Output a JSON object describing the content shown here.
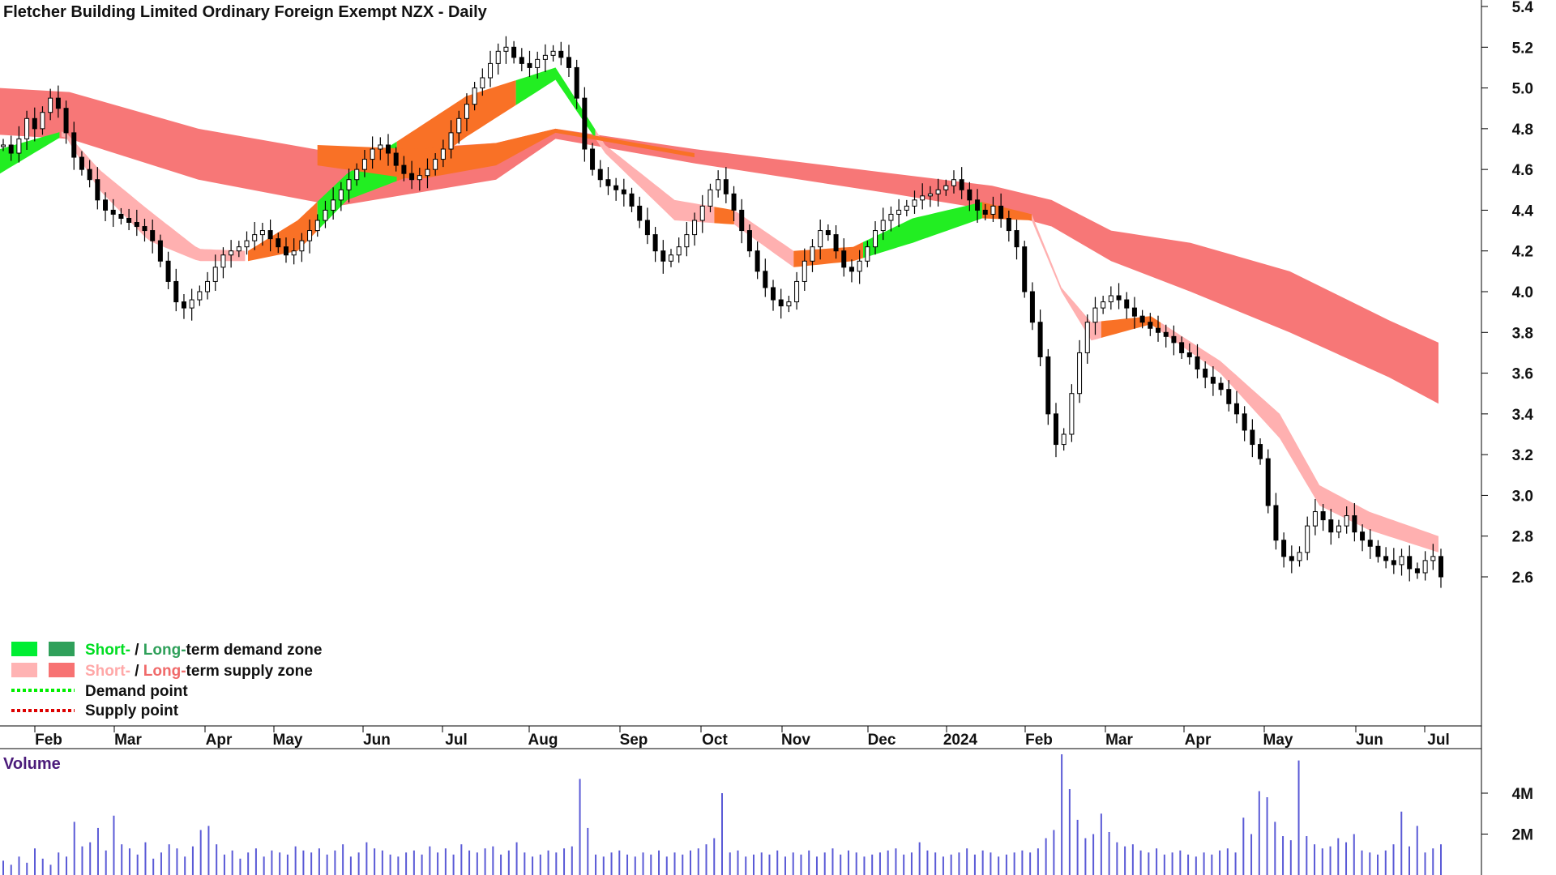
{
  "chart_data": {
    "type": "candlestick",
    "title": "Fletcher Building Limited Ordinary Foreign Exempt NZX - Daily",
    "price_axis": {
      "ticks": [
        "5.4",
        "5.2",
        "5.0",
        "4.8",
        "4.6",
        "4.4",
        "4.2",
        "4.0",
        "3.8",
        "3.6",
        "3.4",
        "3.2",
        "3.0",
        "2.8",
        "2.6"
      ],
      "range": [
        2.52,
        5.42
      ]
    },
    "months": [
      "Feb",
      "Mar",
      "Apr",
      "May",
      "Jun",
      "Jul",
      "Aug",
      "Sep",
      "Oct",
      "Nov",
      "Dec",
      "2024",
      "Feb",
      "Mar",
      "Apr",
      "May",
      "Jun",
      "Jul"
    ],
    "closes": [
      4.72,
      4.68,
      4.75,
      4.85,
      4.8,
      4.88,
      4.95,
      4.9,
      4.78,
      4.66,
      4.6,
      4.55,
      4.45,
      4.4,
      4.38,
      4.36,
      4.34,
      4.32,
      4.3,
      4.25,
      4.15,
      4.05,
      3.95,
      3.92,
      3.96,
      4.0,
      4.05,
      4.12,
      4.18,
      4.2,
      4.22,
      4.25,
      4.28,
      4.3,
      4.26,
      4.22,
      4.18,
      4.2,
      4.25,
      4.3,
      4.35,
      4.4,
      4.45,
      4.5,
      4.55,
      4.6,
      4.65,
      4.7,
      4.72,
      4.68,
      4.62,
      4.58,
      4.55,
      4.57,
      4.6,
      4.65,
      4.7,
      4.78,
      4.85,
      4.92,
      5.0,
      5.05,
      5.12,
      5.18,
      5.2,
      5.15,
      5.12,
      5.1,
      5.14,
      5.16,
      5.18,
      5.15,
      5.1,
      4.95,
      4.7,
      4.6,
      4.55,
      4.52,
      4.5,
      4.48,
      4.42,
      4.35,
      4.28,
      4.2,
      4.15,
      4.18,
      4.22,
      4.28,
      4.35,
      4.42,
      4.5,
      4.55,
      4.48,
      4.4,
      4.3,
      4.2,
      4.1,
      4.02,
      3.96,
      3.93,
      3.95,
      4.05,
      4.15,
      4.22,
      4.3,
      4.28,
      4.2,
      4.12,
      4.1,
      4.15,
      4.22,
      4.3,
      4.35,
      4.38,
      4.4,
      4.42,
      4.45,
      4.47,
      4.48,
      4.5,
      4.52,
      4.55,
      4.5,
      4.45,
      4.4,
      4.38,
      4.42,
      4.36,
      4.3,
      4.22,
      4.0,
      3.85,
      3.68,
      3.4,
      3.25,
      3.3,
      3.5,
      3.7,
      3.85,
      3.92,
      3.95,
      3.98,
      3.96,
      3.92,
      3.88,
      3.85,
      3.82,
      3.8,
      3.78,
      3.75,
      3.7,
      3.68,
      3.62,
      3.58,
      3.55,
      3.52,
      3.45,
      3.4,
      3.32,
      3.25,
      3.18,
      2.95,
      2.78,
      2.7,
      2.68,
      2.72,
      2.85,
      2.92,
      2.88,
      2.82,
      2.85,
      2.9,
      2.82,
      2.78,
      2.75,
      2.7,
      2.68,
      2.66,
      2.7,
      2.64,
      2.62,
      2.68,
      2.7,
      2.6
    ],
    "volume_axis": {
      "ticks": [
        "4M",
        "2M"
      ],
      "range": [
        0,
        6000000
      ]
    },
    "volumes": [
      700000,
      500000,
      900000,
      600000,
      1300000,
      800000,
      500000,
      1100000,
      900000,
      2600000,
      1400000,
      1600000,
      2300000,
      1200000,
      2900000,
      1500000,
      1300000,
      1000000,
      1600000,
      800000,
      1100000,
      1500000,
      1300000,
      900000,
      1400000,
      2200000,
      2400000,
      1500000,
      1000000,
      1200000,
      800000,
      1100000,
      1300000,
      900000,
      1200000,
      1100000,
      1000000,
      1400000,
      1200000,
      1100000,
      1300000,
      1000000,
      1200000,
      1500000,
      900000,
      1100000,
      1600000,
      1300000,
      1200000,
      1000000,
      900000,
      1100000,
      1200000,
      1000000,
      1400000,
      1100000,
      1300000,
      1000000,
      1500000,
      1200000,
      1100000,
      1300000,
      1400000,
      1000000,
      1200000,
      1600000,
      1100000,
      900000,
      1000000,
      1200000,
      1100000,
      1300000,
      1400000,
      4700000,
      2300000,
      1000000,
      900000,
      1100000,
      1200000,
      1000000,
      900000,
      1100000,
      1000000,
      1200000,
      900000,
      1100000,
      1000000,
      1200000,
      1300000,
      1500000,
      1800000,
      4000000,
      1100000,
      1200000,
      900000,
      1000000,
      1100000,
      1000000,
      1200000,
      900000,
      1100000,
      1000000,
      1200000,
      900000,
      1100000,
      1300000,
      1000000,
      1200000,
      1100000,
      900000,
      1000000,
      1100000,
      1200000,
      1300000,
      1000000,
      1100000,
      1600000,
      1200000,
      1100000,
      900000,
      1000000,
      1100000,
      1300000,
      1000000,
      1200000,
      1100000,
      900000,
      1000000,
      1100000,
      1200000,
      1100000,
      1300000,
      1800000,
      2200000,
      5900000,
      4200000,
      2700000,
      1800000,
      2000000,
      3000000,
      2100000,
      1600000,
      1400000,
      1500000,
      1200000,
      1100000,
      1300000,
      1000000,
      1100000,
      1200000,
      1000000,
      900000,
      1100000,
      1000000,
      1200000,
      1300000,
      1100000,
      2800000,
      2000000,
      4100000,
      3800000,
      2600000,
      1900000,
      1700000,
      5600000,
      1900000,
      1500000,
      1300000,
      1400000,
      1800000,
      1600000,
      2000000,
      1200000,
      1100000,
      1000000,
      1200000,
      1500000,
      3100000,
      1400000,
      2400000,
      1100000,
      1300000,
      1500000
    ],
    "bands": {
      "long_supply_top": [
        [
          0,
          5.0
        ],
        [
          70,
          4.98
        ],
        [
          200,
          4.8
        ],
        [
          340,
          4.68
        ],
        [
          500,
          4.73
        ],
        [
          560,
          4.8
        ],
        [
          700,
          4.7
        ],
        [
          900,
          4.58
        ],
        [
          1000,
          4.52
        ],
        [
          1060,
          4.45
        ],
        [
          1120,
          4.3
        ],
        [
          1200,
          4.24
        ],
        [
          1300,
          4.1
        ],
        [
          1400,
          3.86
        ],
        [
          1450,
          3.75
        ]
      ],
      "long_supply_bottom": [
        [
          0,
          4.77
        ],
        [
          70,
          4.75
        ],
        [
          200,
          4.55
        ],
        [
          340,
          4.42
        ],
        [
          500,
          4.55
        ],
        [
          560,
          4.75
        ],
        [
          700,
          4.63
        ],
        [
          900,
          4.48
        ],
        [
          1000,
          4.4
        ],
        [
          1060,
          4.32
        ],
        [
          1120,
          4.15
        ],
        [
          1200,
          4.0
        ],
        [
          1300,
          3.8
        ],
        [
          1400,
          3.58
        ],
        [
          1450,
          3.45
        ]
      ],
      "short_band_top": [
        [
          0,
          4.7
        ],
        [
          65,
          4.79
        ],
        [
          100,
          4.6
        ],
        [
          150,
          4.4
        ],
        [
          200,
          4.21
        ],
        [
          250,
          4.2
        ],
        [
          300,
          4.35
        ],
        [
          350,
          4.58
        ],
        [
          420,
          4.8
        ],
        [
          470,
          4.96
        ],
        [
          560,
          5.1
        ],
        [
          610,
          4.72
        ],
        [
          680,
          4.45
        ],
        [
          740,
          4.4
        ],
        [
          800,
          4.2
        ],
        [
          860,
          4.22
        ],
        [
          920,
          4.36
        ],
        [
          990,
          4.44
        ],
        [
          1040,
          4.38
        ],
        [
          1070,
          4.02
        ],
        [
          1100,
          3.85
        ],
        [
          1160,
          3.88
        ],
        [
          1230,
          3.66
        ],
        [
          1290,
          3.4
        ],
        [
          1330,
          3.05
        ],
        [
          1380,
          2.92
        ],
        [
          1450,
          2.8
        ]
      ],
      "short_band_bottom": [
        [
          0,
          4.58
        ],
        [
          65,
          4.77
        ],
        [
          100,
          4.5
        ],
        [
          150,
          4.25
        ],
        [
          200,
          4.15
        ],
        [
          250,
          4.15
        ],
        [
          300,
          4.2
        ],
        [
          350,
          4.45
        ],
        [
          420,
          4.58
        ],
        [
          470,
          4.76
        ],
        [
          560,
          5.04
        ],
        [
          610,
          4.68
        ],
        [
          680,
          4.35
        ],
        [
          740,
          4.33
        ],
        [
          800,
          4.12
        ],
        [
          860,
          4.15
        ],
        [
          920,
          4.24
        ],
        [
          990,
          4.36
        ],
        [
          1040,
          4.35
        ],
        [
          1070,
          4.0
        ],
        [
          1100,
          3.76
        ],
        [
          1160,
          3.84
        ],
        [
          1230,
          3.6
        ],
        [
          1290,
          3.28
        ],
        [
          1330,
          2.95
        ],
        [
          1380,
          2.83
        ],
        [
          1450,
          2.72
        ]
      ]
    },
    "legend": [
      {
        "label_a": "Short-",
        "sep": " / ",
        "label_b": "Long-",
        "rest": "term demand zone",
        "color_a": "#00ee33",
        "color_b": "#2fa05a"
      },
      {
        "label_a": "Short-",
        "sep": " / ",
        "label_b": "Long-",
        "rest": "term supply zone",
        "color_a": "#ffb3b3",
        "color_b": "#f77272"
      },
      {
        "label": "Demand point",
        "color": "#00ee00"
      },
      {
        "label": "Supply point",
        "color": "#dd0000"
      }
    ],
    "volume_label": "Volume",
    "colors": {
      "short_demand": "#22ee22",
      "long_demand": "#2fa05a",
      "short_supply": "#ffb0b0",
      "long_supply": "#f77777",
      "overlap": "#f97126",
      "volume": "#5a5ad6",
      "candle": "#000000"
    }
  }
}
